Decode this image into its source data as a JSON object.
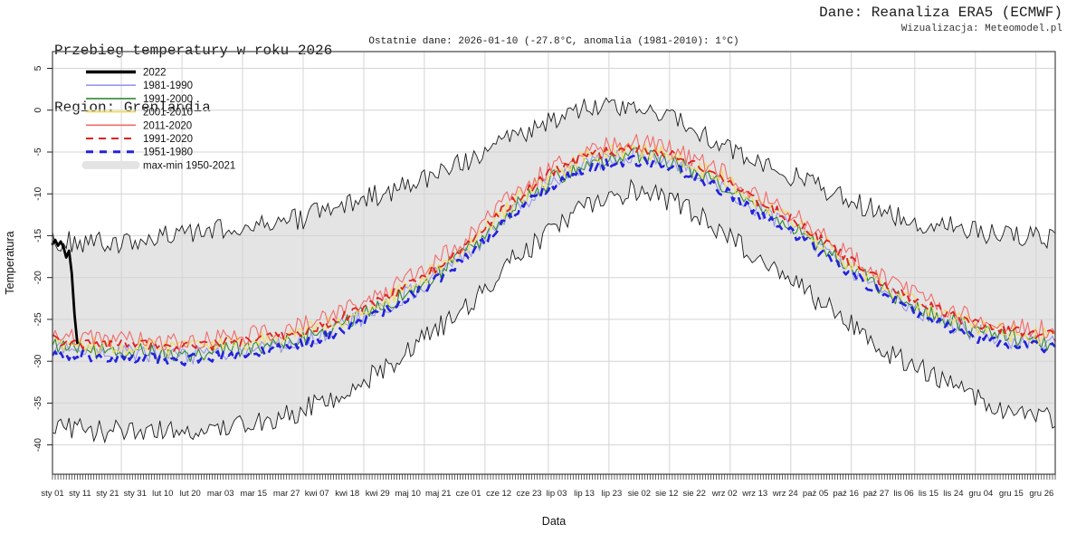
{
  "header": {
    "title": "Przebieg temperatury w roku 2026",
    "region": "Region: Grenlandia",
    "source": "Dane: Reanaliza ERA5 (ECMWF)",
    "visualization": "Wizualizacja: Meteomodel.pl",
    "subtitle": "Ostatnie dane: 2026-01-10 (-27.8°C, anomalia (1981-2010): 1°C)"
  },
  "chart_data": {
    "type": "line",
    "title": "Przebieg temperatury w roku 2026 — Region: Grenlandia",
    "xlabel": "Data",
    "ylabel": "Temperatura",
    "x_unit": "day_of_year",
    "x_range": [
      1,
      365
    ],
    "ylim": [
      -43.5,
      7
    ],
    "y_ticks": [
      5,
      0,
      -5,
      -10,
      -15,
      -20,
      -25,
      -30,
      -35,
      -40
    ],
    "grid": true,
    "grid_color": "#d4d4d4",
    "grid_days": [
      26,
      48,
      70,
      92,
      114,
      136,
      158,
      181,
      203,
      225,
      247,
      269,
      291,
      314,
      336,
      358
    ],
    "noise_seed": 20260110,
    "latest": {
      "date": "2026-01-10",
      "temperature_c": -27.8,
      "anomaly_reference": "1981-2010",
      "anomaly_c": 1
    },
    "x_tick_labels": [
      {
        "label": "sty 01",
        "day": 1
      },
      {
        "label": "sty 11",
        "day": 11
      },
      {
        "label": "sty 21",
        "day": 21
      },
      {
        "label": "sty 31",
        "day": 31
      },
      {
        "label": "lut 10",
        "day": 41
      },
      {
        "label": "lut 20",
        "day": 51
      },
      {
        "label": "mar 03",
        "day": 62
      },
      {
        "label": "mar 15",
        "day": 74
      },
      {
        "label": "mar 27",
        "day": 86
      },
      {
        "label": "kwi 07",
        "day": 97
      },
      {
        "label": "kwi 18",
        "day": 108
      },
      {
        "label": "kwi 29",
        "day": 119
      },
      {
        "label": "maj 10",
        "day": 130
      },
      {
        "label": "maj 21",
        "day": 141
      },
      {
        "label": "cze 01",
        "day": 152
      },
      {
        "label": "cze 12",
        "day": 163
      },
      {
        "label": "cze 23",
        "day": 174
      },
      {
        "label": "lip 03",
        "day": 184
      },
      {
        "label": "lip 13",
        "day": 194
      },
      {
        "label": "lip 23",
        "day": 204
      },
      {
        "label": "sie 02",
        "day": 214
      },
      {
        "label": "sie 12",
        "day": 224
      },
      {
        "label": "sie 22",
        "day": 234
      },
      {
        "label": "wrz 02",
        "day": 245
      },
      {
        "label": "wrz 13",
        "day": 256
      },
      {
        "label": "wrz 24",
        "day": 267
      },
      {
        "label": "paź 05",
        "day": 278
      },
      {
        "label": "paź 16",
        "day": 289
      },
      {
        "label": "paź 27",
        "day": 300
      },
      {
        "label": "lis 06",
        "day": 310
      },
      {
        "label": "lis 15",
        "day": 319
      },
      {
        "label": "lis 24",
        "day": 328
      },
      {
        "label": "gru 04",
        "day": 338
      },
      {
        "label": "gru 15",
        "day": 349
      },
      {
        "label": "gru 26",
        "day": 360
      }
    ],
    "control_days": [
      1,
      15,
      32,
      46,
      60,
      74,
      91,
      105,
      121,
      135,
      152,
      166,
      182,
      196,
      213,
      227,
      244,
      258,
      274,
      288,
      305,
      319,
      335,
      349,
      365
    ],
    "band": {
      "name": "max-min 1950-2021",
      "fill": "#e4e4e4",
      "edge_color": "#1a1a1a",
      "edge_width": 0.9,
      "max_values": [
        -15.5,
        -16.0,
        -15.5,
        -15.0,
        -14.5,
        -13.5,
        -13.0,
        -11.5,
        -10.0,
        -8.5,
        -6.0,
        -3.5,
        -1.5,
        0.5,
        0.8,
        -1.0,
        -4.0,
        -6.5,
        -8.5,
        -10.5,
        -12.5,
        -13.5,
        -14.5,
        -15.0,
        -15.5
      ],
      "min_values": [
        -37.5,
        -38.5,
        -38.0,
        -38.5,
        -38.0,
        -37.5,
        -36.0,
        -34.0,
        -31.0,
        -27.5,
        -23.5,
        -18.5,
        -14.5,
        -11.0,
        -9.5,
        -11.0,
        -14.5,
        -18.0,
        -21.5,
        -25.0,
        -29.0,
        -31.5,
        -34.0,
        -36.0,
        -37.0
      ],
      "noise_amplitude": 1.35
    },
    "series": [
      {
        "name": "1981-1990",
        "color": "#9898ee",
        "width": 1.1,
        "dash": null,
        "noise_amplitude": 1.1,
        "values": [
          -28.5,
          -29.0,
          -29.0,
          -29.5,
          -29.0,
          -28.5,
          -27.5,
          -26.0,
          -23.5,
          -21.0,
          -17.0,
          -12.5,
          -8.5,
          -6.3,
          -5.5,
          -6.5,
          -9.0,
          -12.0,
          -15.0,
          -18.5,
          -22.0,
          -24.5,
          -26.5,
          -27.5,
          -28.0
        ]
      },
      {
        "name": "1991-2000",
        "color": "#338a33",
        "width": 1.1,
        "dash": null,
        "noise_amplitude": 1.0,
        "values": [
          -28.3,
          -28.8,
          -28.8,
          -29.3,
          -28.8,
          -28.3,
          -27.3,
          -25.8,
          -23.3,
          -20.8,
          -16.8,
          -12.3,
          -8.3,
          -6.1,
          -5.3,
          -6.3,
          -8.8,
          -11.8,
          -14.8,
          -18.3,
          -21.8,
          -24.3,
          -26.3,
          -27.3,
          -27.8
        ]
      },
      {
        "name": "2001-2010",
        "color": "#f0dd55",
        "width": 1.1,
        "dash": null,
        "noise_amplitude": 1.1,
        "values": [
          -27.7,
          -28.2,
          -28.2,
          -28.7,
          -28.2,
          -27.7,
          -26.7,
          -25.2,
          -22.7,
          -20.2,
          -16.2,
          -11.7,
          -7.7,
          -5.5,
          -4.7,
          -5.7,
          -8.2,
          -11.2,
          -14.2,
          -17.7,
          -21.2,
          -23.7,
          -25.7,
          -26.7,
          -27.2
        ]
      },
      {
        "name": "2011-2020",
        "color": "#f26b6b",
        "width": 1.1,
        "dash": null,
        "noise_amplitude": 1.1,
        "values": [
          -26.8,
          -27.3,
          -27.3,
          -27.8,
          -27.3,
          -26.8,
          -25.8,
          -24.3,
          -21.8,
          -19.3,
          -15.3,
          -10.8,
          -6.8,
          -4.6,
          -3.8,
          -4.8,
          -7.3,
          -10.3,
          -13.3,
          -16.8,
          -20.3,
          -22.8,
          -24.8,
          -25.8,
          -26.3
        ]
      },
      {
        "name": "1991-2020",
        "color": "#dd2222",
        "width": 1.8,
        "dash": "9,6",
        "noise_amplitude": 0.65,
        "values": [
          -27.5,
          -28.0,
          -28.0,
          -28.5,
          -28.0,
          -27.5,
          -26.5,
          -25.0,
          -22.5,
          -20.0,
          -16.0,
          -11.5,
          -7.5,
          -5.3,
          -4.5,
          -5.5,
          -8.0,
          -11.0,
          -14.0,
          -17.5,
          -21.0,
          -23.5,
          -25.5,
          -26.5,
          -27.0
        ]
      },
      {
        "name": "1951-1980",
        "color": "#2222dd",
        "width": 2.6,
        "dash": "9,7",
        "noise_amplitude": 0.65,
        "values": [
          -29.0,
          -29.5,
          -29.5,
          -30.0,
          -29.5,
          -29.0,
          -28.0,
          -26.5,
          -24.0,
          -21.5,
          -17.5,
          -13.0,
          -9.0,
          -6.8,
          -6.0,
          -7.0,
          -9.5,
          -12.5,
          -15.5,
          -19.0,
          -22.5,
          -25.0,
          -27.0,
          -28.0,
          -28.5
        ]
      }
    ],
    "current_year_series": {
      "name": "2022",
      "color": "#000000",
      "width": 2.8,
      "days": [
        1,
        2,
        3,
        4,
        5,
        6,
        7,
        8,
        9,
        10
      ],
      "values": [
        -16.0,
        -15.5,
        -16.2,
        -15.7,
        -16.4,
        -17.6,
        -16.8,
        -19.5,
        -24.5,
        -27.8
      ]
    },
    "legend_position": "top-left",
    "legend": [
      {
        "label": "2022",
        "swatch": "line",
        "color": "#000000",
        "width": 3.5,
        "dash": null
      },
      {
        "label": "1981-1990",
        "swatch": "line",
        "color": "#9898ee",
        "width": 1.6,
        "dash": null
      },
      {
        "label": "1991-2000",
        "swatch": "line",
        "color": "#338a33",
        "width": 1.6,
        "dash": null
      },
      {
        "label": "2001-2010",
        "swatch": "line",
        "color": "#f0dd55",
        "width": 1.6,
        "dash": null
      },
      {
        "label": "2011-2020",
        "swatch": "line",
        "color": "#f26b6b",
        "width": 1.6,
        "dash": null
      },
      {
        "label": "1991-2020",
        "swatch": "line",
        "color": "#dd2222",
        "width": 2.0,
        "dash": "8,6"
      },
      {
        "label": "1951-1980",
        "swatch": "line",
        "color": "#2222dd",
        "width": 3.0,
        "dash": "8,7"
      },
      {
        "label": "max-min 1950-2021",
        "swatch": "band",
        "color": "#e3e3e3",
        "width": 9,
        "dash": null
      }
    ]
  }
}
